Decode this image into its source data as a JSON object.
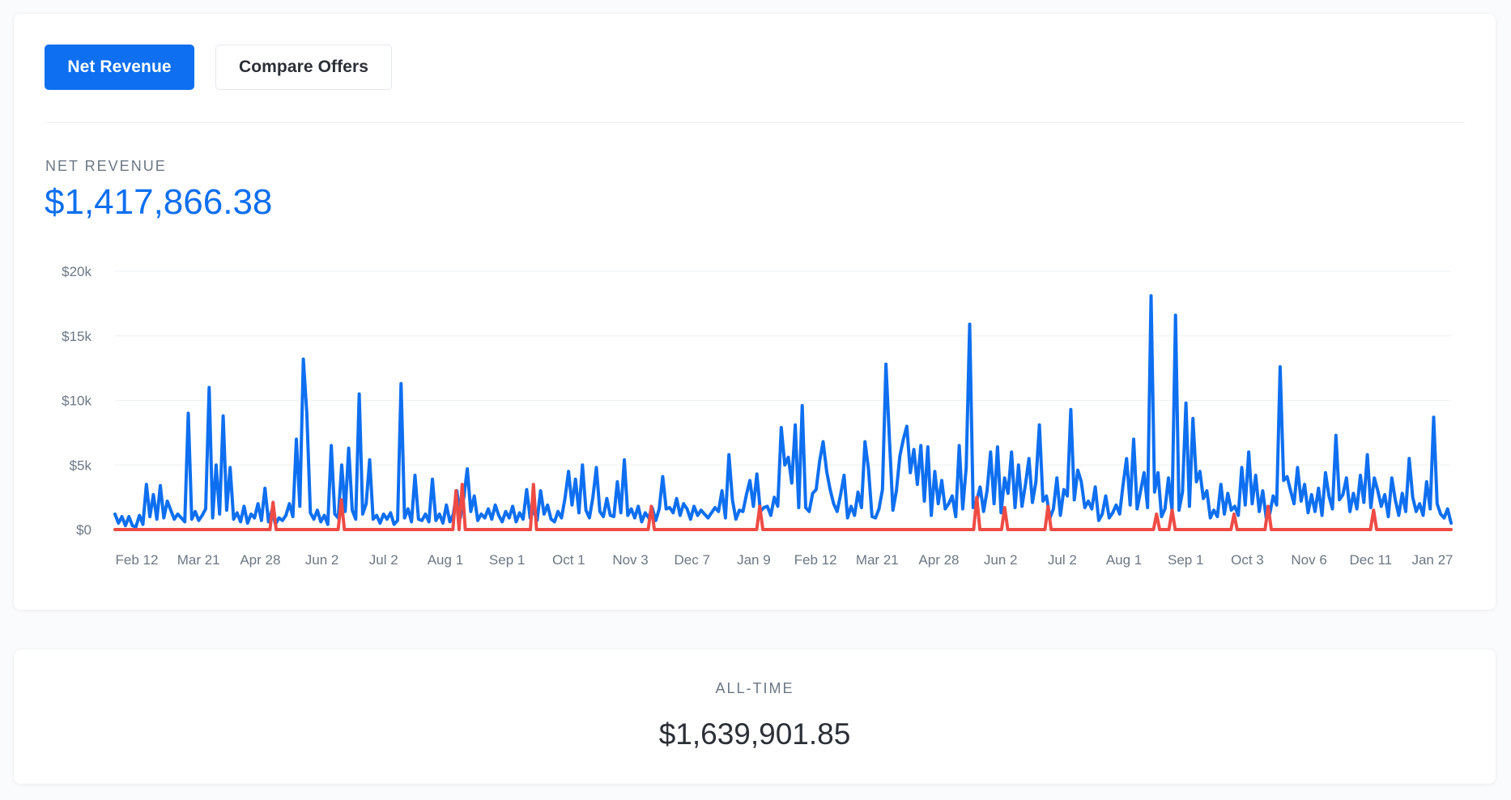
{
  "tabs": {
    "net_revenue_label": "Net Revenue",
    "compare_offers_label": "Compare Offers"
  },
  "metric": {
    "label": "NET REVENUE",
    "value": "$1,417,866.38"
  },
  "alltime": {
    "label": "ALL-TIME",
    "value": "$1,639,901.85"
  },
  "colors": {
    "accent": "#0e6ff0",
    "series_primary": "#0e6ff0",
    "series_secondary": "#ef4b45",
    "gridline": "#eef1f4",
    "tick_text": "#6b7785"
  },
  "chart_data": {
    "type": "line",
    "title": "",
    "xlabel": "",
    "ylabel": "",
    "ylim": [
      0,
      20000
    ],
    "y_ticks": [
      {
        "value": 20000,
        "label": "$20k"
      },
      {
        "value": 15000,
        "label": "$15k"
      },
      {
        "value": 10000,
        "label": "$10k"
      },
      {
        "value": 5000,
        "label": "$5k"
      },
      {
        "value": 0,
        "label": "$0"
      }
    ],
    "x_tick_labels": [
      "Feb 12",
      "Mar 21",
      "Apr 28",
      "Jun 2",
      "Jul 2",
      "Aug 1",
      "Sep 1",
      "Oct 1",
      "Nov 3",
      "Dec 7",
      "Jan 9",
      "Feb 12",
      "Mar 21",
      "Apr 28",
      "Jun 2",
      "Jul 2",
      "Aug 1",
      "Sep 1",
      "Oct 3",
      "Nov 6",
      "Dec 11",
      "Jan 27"
    ],
    "grid": true,
    "legend": "none",
    "series": [
      {
        "values": [
          1200,
          500,
          1000,
          300,
          1000,
          300,
          200,
          1100,
          400,
          3500,
          1000,
          2700,
          800,
          3400,
          900,
          2200,
          1500,
          800,
          1200,
          900,
          600,
          9000,
          800,
          1400,
          700,
          1100,
          1600,
          11000,
          900,
          5000,
          1200,
          8800,
          1500,
          4800,
          800,
          1300,
          600,
          1800,
          500,
          1200,
          900,
          2000,
          700,
          3200,
          600,
          1500,
          400,
          900,
          700,
          1100,
          2000,
          1000,
          7000,
          1800,
          13200,
          9000,
          1300,
          800,
          1500,
          600,
          1100,
          400,
          6500,
          1200,
          900,
          5000,
          1400,
          6300,
          1500,
          800,
          10500,
          1200,
          2000,
          5400,
          800,
          1100,
          500,
          1200,
          800,
          1300,
          400,
          700,
          11300,
          900,
          1600,
          600,
          4200,
          800,
          700,
          1200,
          600,
          3900,
          700,
          1200,
          500,
          1900,
          600,
          1200,
          3000,
          900,
          2500,
          4700,
          1400,
          2600,
          700,
          1200,
          900,
          1600,
          800,
          1900,
          1100,
          600,
          1400,
          900,
          1800,
          600,
          1300,
          800,
          3100,
          900,
          1500,
          700,
          3000,
          1200,
          1900,
          800,
          600,
          1400,
          900,
          2400,
          4500,
          1900,
          3900,
          1300,
          5000,
          1500,
          900,
          2500,
          4800,
          1400,
          1000,
          2400,
          1100,
          1000,
          3700,
          1300,
          5400,
          1100,
          1600,
          900,
          1800,
          600,
          1300,
          900,
          1700,
          700,
          1600,
          4100,
          1600,
          1700,
          1300,
          2400,
          1100,
          2000,
          1600,
          800,
          1800,
          1100,
          1500,
          1200,
          900,
          1300,
          1700,
          1400,
          3000,
          900,
          5800,
          2300,
          800,
          1500,
          1400,
          2700,
          3800,
          1800,
          4300,
          1400,
          1700,
          1800,
          1100,
          2500,
          1800,
          7900,
          5000,
          5600,
          3600,
          8100,
          1700,
          9600,
          1700,
          1400,
          2800,
          3100,
          5300,
          6800,
          4500,
          3100,
          2000,
          1400,
          2700,
          4200,
          900,
          1800,
          1100,
          2900,
          1700,
          6800,
          4700,
          1000,
          900,
          1600,
          3100,
          12800,
          7000,
          1500,
          3000,
          5700,
          7000,
          8000,
          4400,
          6200,
          3500,
          6500,
          2200,
          6400,
          1100,
          4500,
          2000,
          3800,
          1600,
          2000,
          2600,
          1000,
          6500,
          1600,
          4800,
          15900,
          1700,
          2200,
          3300,
          1400,
          3000,
          6000,
          2000,
          6400,
          1300,
          4000,
          2800,
          6000,
          1700,
          5000,
          1800,
          3500,
          5500,
          2100,
          3700,
          8100,
          2200,
          2600,
          900,
          1600,
          4000,
          1100,
          3100,
          2600,
          9300,
          2300,
          4600,
          3700,
          1700,
          2200,
          1600,
          3300,
          700,
          1200,
          2600,
          900,
          1300,
          1900,
          1200,
          3500,
          5500,
          1900,
          7000,
          1600,
          3000,
          4400,
          1700,
          18100,
          2900,
          4400,
          1000,
          1600,
          4000,
          1500,
          16600,
          1500,
          2900,
          9800,
          1800,
          8600,
          3700,
          4500,
          2400,
          3000,
          900,
          1500,
          1000,
          3500,
          1200,
          2800,
          1500,
          1800,
          1100,
          4800,
          1900,
          6000,
          2000,
          4200,
          1400,
          3000,
          900,
          1200,
          2600,
          1900,
          12600,
          3800,
          4100,
          3000,
          2000,
          4800,
          2200,
          3500,
          1300,
          2700,
          1400,
          3200,
          1100,
          4400,
          2600,
          1600,
          7300,
          2300,
          2700,
          4000,
          1400,
          2800,
          1600,
          4200,
          2100,
          5800,
          1700,
          4000,
          3000,
          1800,
          2700,
          1000,
          4000,
          2300,
          1100,
          2800,
          1400,
          5500,
          2500,
          1400,
          2000,
          1100,
          3700,
          1600,
          8700,
          2000,
          1200,
          900,
          1600,
          500
        ]
      },
      {
        "values": [
          0,
          0,
          0,
          0,
          0,
          0,
          0,
          0,
          0,
          0,
          0,
          0,
          0,
          0,
          0,
          0,
          0,
          0,
          0,
          0,
          0,
          0,
          0,
          0,
          0,
          0,
          0,
          0,
          0,
          0,
          0,
          0,
          0,
          0,
          0,
          0,
          0,
          0,
          0,
          0,
          0,
          0,
          0,
          0,
          0,
          0,
          0,
          0,
          0,
          0,
          0,
          2100,
          0,
          0,
          0,
          0,
          0,
          0,
          0,
          0,
          0,
          0,
          0,
          0,
          0,
          0,
          0,
          0,
          0,
          0,
          0,
          0,
          0,
          2300,
          0,
          0,
          0,
          0,
          0,
          0,
          0,
          0,
          0,
          0,
          0,
          0,
          0,
          0,
          0,
          0,
          0,
          0,
          0,
          0,
          0,
          0,
          0,
          0,
          0,
          0,
          0,
          0,
          0,
          0,
          0,
          0,
          0,
          0,
          0,
          0,
          3000,
          0,
          3500,
          0,
          0,
          0,
          0,
          0,
          0,
          0,
          0,
          0,
          0,
          0,
          0,
          0,
          0,
          0,
          0,
          0,
          0,
          0,
          0,
          0,
          0,
          3500,
          0,
          0,
          0,
          0,
          0,
          0,
          0,
          0,
          0,
          0,
          0,
          0,
          0,
          0,
          0,
          0,
          0,
          0,
          0,
          0,
          0,
          0,
          0,
          0,
          0,
          0,
          0,
          0,
          0,
          0,
          0,
          0,
          0,
          0,
          0,
          0,
          0,
          1800,
          0,
          0,
          0,
          0,
          0,
          0,
          0,
          0,
          0,
          0,
          0,
          0,
          0,
          0,
          0,
          0,
          0,
          0,
          0,
          0,
          0,
          0,
          0,
          0,
          0,
          0,
          0,
          0,
          0,
          0,
          0,
          0,
          0,
          0,
          1800,
          0,
          0,
          0,
          0,
          0,
          0,
          0,
          0,
          0,
          0,
          0,
          0,
          0,
          0,
          0,
          0,
          0,
          0,
          0,
          0,
          0,
          0,
          0,
          0,
          0,
          0,
          0,
          0,
          0,
          0,
          0,
          0,
          0,
          0,
          0,
          0,
          0,
          0,
          0,
          0,
          0,
          0,
          0,
          0,
          0,
          0,
          0,
          0,
          0,
          0,
          0,
          0,
          0,
          0,
          0,
          0,
          0,
          0,
          0,
          0,
          0,
          0,
          0,
          0,
          0,
          0,
          0,
          0,
          0,
          2500,
          0,
          0,
          0,
          0,
          0,
          0,
          0,
          0,
          1700,
          0,
          0,
          0,
          0,
          0,
          0,
          0,
          0,
          0,
          0,
          0,
          0,
          0,
          1800,
          0,
          0,
          0,
          0,
          0,
          0,
          0,
          0,
          0,
          0,
          0,
          0,
          0,
          0,
          0,
          0,
          0,
          0,
          0,
          0,
          0,
          0,
          0,
          0,
          0,
          0,
          0,
          0,
          0,
          0,
          0,
          0,
          0,
          0,
          1200,
          0,
          0,
          0,
          0,
          1500,
          0,
          0,
          0,
          0,
          0,
          0,
          0,
          0,
          0,
          0,
          0,
          0,
          0,
          0,
          0,
          0,
          0,
          0,
          0,
          1200,
          0,
          0,
          0,
          0,
          0,
          0,
          0,
          0,
          0,
          0,
          1800,
          0,
          0,
          0,
          0,
          0,
          0,
          0,
          0,
          0,
          0,
          0,
          0,
          0,
          0,
          0,
          0,
          0,
          0,
          0,
          0,
          0,
          0,
          0,
          0,
          0,
          0,
          0,
          0,
          0,
          0,
          0,
          0,
          0,
          1500,
          0,
          0,
          0,
          0,
          0,
          0,
          0,
          0,
          0,
          0,
          0,
          0,
          0,
          0,
          0,
          0,
          0,
          0,
          0,
          0,
          0,
          0,
          0,
          0,
          0
        ]
      }
    ]
  }
}
